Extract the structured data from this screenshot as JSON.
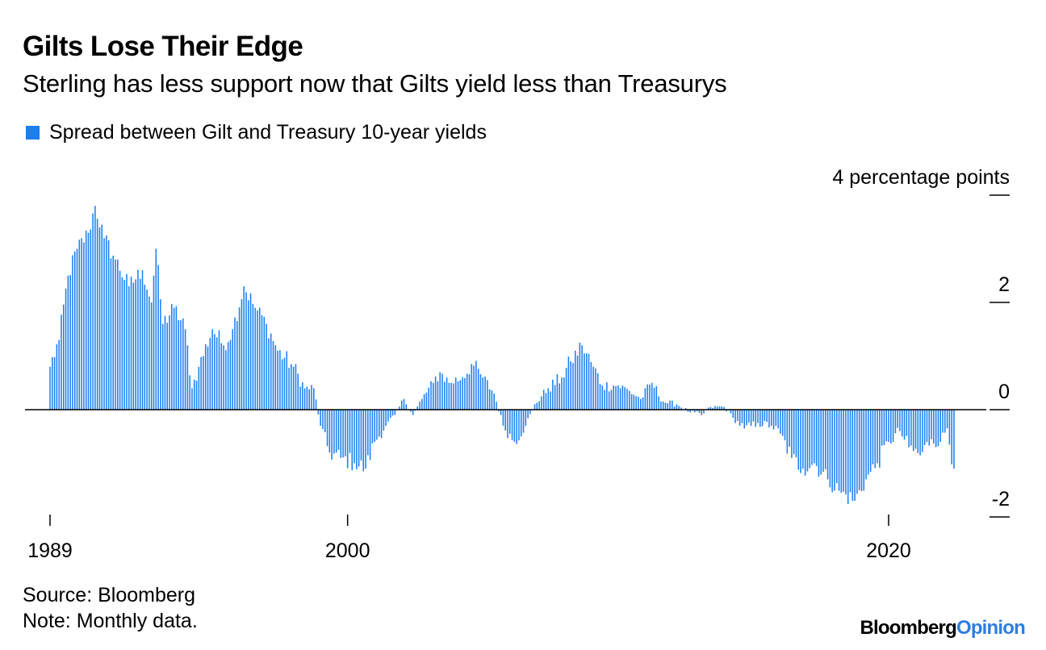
{
  "title": "Gilts Lose Their Edge",
  "subtitle": "Sterling has less support now that Gilts yield less than Treasurys",
  "legend": {
    "label": "Spread between Gilt and Treasury 10-year yields"
  },
  "footer": {
    "source": "Source: Bloomberg",
    "note": "Note: Monthly data."
  },
  "brand": {
    "part1": "Bloomberg",
    "part2": "Opinion"
  },
  "colors": {
    "bar": "#1a7ff0",
    "axis": "#000000",
    "brand_accent": "#2d7de0"
  },
  "chart_data": {
    "type": "bar",
    "frequency": "monthly",
    "title": "",
    "xlabel": "",
    "ylabel": "4 percentage points",
    "ylim": [
      -2,
      4
    ],
    "yticks": [
      4,
      2,
      0,
      -2
    ],
    "ytick_labels": [
      "4 percentage points",
      "2",
      "0",
      "-2"
    ],
    "xticks": [
      1989,
      2000,
      2020
    ],
    "xtick_labels": [
      "1989",
      "2000",
      "2020"
    ],
    "grid": false,
    "legend_position": "top-left",
    "series": [
      {
        "name": "Spread between Gilt and Treasury 10-year yields",
        "start": "1989-01",
        "anchors": [
          [
            "1989-01",
            0.8
          ],
          [
            "1989-05",
            1.3
          ],
          [
            "1989-09",
            2.5
          ],
          [
            "1990-01",
            3.0
          ],
          [
            "1990-06",
            3.3
          ],
          [
            "1990-09",
            3.8
          ],
          [
            "1991-01",
            3.2
          ],
          [
            "1991-06",
            2.8
          ],
          [
            "1991-12",
            2.3
          ],
          [
            "1992-06",
            2.6
          ],
          [
            "1992-10",
            2.0
          ],
          [
            "1992-12",
            3.0
          ],
          [
            "1993-03",
            1.6
          ],
          [
            "1993-08",
            1.9
          ],
          [
            "1994-01",
            1.5
          ],
          [
            "1994-04",
            0.4
          ],
          [
            "1994-07",
            0.8
          ],
          [
            "1995-01",
            1.5
          ],
          [
            "1995-06",
            1.2
          ],
          [
            "1995-10",
            1.5
          ],
          [
            "1996-03",
            2.3
          ],
          [
            "1996-08",
            1.9
          ],
          [
            "1997-01",
            1.6
          ],
          [
            "1997-06",
            1.1
          ],
          [
            "1998-01",
            0.8
          ],
          [
            "1998-06",
            0.4
          ],
          [
            "1998-10",
            0.4
          ],
          [
            "1999-01",
            -0.3
          ],
          [
            "1999-05",
            -0.8
          ],
          [
            "1999-10",
            -0.9
          ],
          [
            "2000-04",
            -1.0
          ],
          [
            "2000-09",
            -1.1
          ],
          [
            "2001-01",
            -0.6
          ],
          [
            "2001-06",
            -0.3
          ],
          [
            "2001-10",
            -0.1
          ],
          [
            "2002-02",
            0.2
          ],
          [
            "2002-06",
            -0.1
          ],
          [
            "2002-10",
            0.2
          ],
          [
            "2003-03",
            0.5
          ],
          [
            "2003-06",
            0.7
          ],
          [
            "2003-10",
            0.5
          ],
          [
            "2004-04",
            0.6
          ],
          [
            "2004-08",
            0.85
          ],
          [
            "2005-01",
            0.6
          ],
          [
            "2005-06",
            0.3
          ],
          [
            "2005-10",
            -0.3
          ],
          [
            "2006-03",
            -0.6
          ],
          [
            "2006-08",
            -0.3
          ],
          [
            "2006-12",
            0.1
          ],
          [
            "2007-06",
            0.4
          ],
          [
            "2007-12",
            0.6
          ],
          [
            "2008-04",
            0.9
          ],
          [
            "2008-09",
            1.2
          ],
          [
            "2009-02",
            0.8
          ],
          [
            "2009-06",
            0.45
          ],
          [
            "2010-01",
            0.45
          ],
          [
            "2010-06",
            0.35
          ],
          [
            "2010-11",
            0.2
          ],
          [
            "2011-04",
            0.5
          ],
          [
            "2011-09",
            0.15
          ],
          [
            "2012-03",
            0.1
          ],
          [
            "2012-09",
            -0.05
          ],
          [
            "2013-02",
            -0.1
          ],
          [
            "2013-06",
            0.05
          ],
          [
            "2013-12",
            0.05
          ],
          [
            "2014-04",
            -0.15
          ],
          [
            "2014-09",
            -0.35
          ],
          [
            "2015-03",
            -0.25
          ],
          [
            "2015-09",
            -0.3
          ],
          [
            "2016-01",
            -0.45
          ],
          [
            "2016-06",
            -0.9
          ],
          [
            "2016-11",
            -1.1
          ],
          [
            "2017-04",
            -1.0
          ],
          [
            "2017-10",
            -1.3
          ],
          [
            "2018-04",
            -1.55
          ],
          [
            "2018-10",
            -1.7
          ],
          [
            "2019-03",
            -1.3
          ],
          [
            "2019-08",
            -1.0
          ],
          [
            "2020-01",
            -0.6
          ],
          [
            "2020-06",
            -0.4
          ],
          [
            "2020-10",
            -0.7
          ],
          [
            "2021-03",
            -0.85
          ],
          [
            "2021-08",
            -0.55
          ],
          [
            "2021-12",
            -0.6
          ],
          [
            "2022-03",
            -0.35
          ],
          [
            "2022-06",
            -1.1
          ]
        ]
      }
    ]
  }
}
